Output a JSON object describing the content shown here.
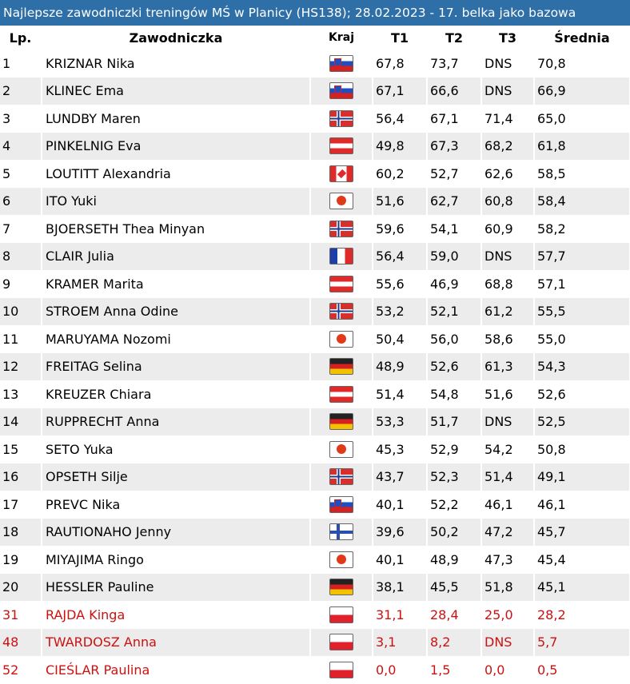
{
  "title": "Najlepsze zawodniczki treningów MŚ w Planicy (HS138); 28.02.2023 - 17. belka jako bazowa",
  "headers": {
    "lp": "Lp.",
    "name": "Zawodniczka",
    "country": "Kraj",
    "t1": "T1",
    "t2": "T2",
    "t3": "T3",
    "avg": "Średnia"
  },
  "highlight_color": "#cc1111",
  "rows": [
    {
      "lp": "1",
      "name": "KRIZNAR Nika",
      "flag": "SLO",
      "t1": "67,8",
      "t2": "73,7",
      "t3": "DNS",
      "avg": "70,8"
    },
    {
      "lp": "2",
      "name": "KLINEC Ema",
      "flag": "SLO",
      "t1": "67,1",
      "t2": "66,6",
      "t3": "DNS",
      "avg": "66,9"
    },
    {
      "lp": "3",
      "name": "LUNDBY Maren",
      "flag": "NOR",
      "t1": "56,4",
      "t2": "67,1",
      "t3": "71,4",
      "avg": "65,0"
    },
    {
      "lp": "4",
      "name": "PINKELNIG Eva",
      "flag": "AUT",
      "t1": "49,8",
      "t2": "67,3",
      "t3": "68,2",
      "avg": "61,8"
    },
    {
      "lp": "5",
      "name": "LOUTITT Alexandria",
      "flag": "CAN",
      "t1": "60,2",
      "t2": "52,7",
      "t3": "62,6",
      "avg": "58,5"
    },
    {
      "lp": "6",
      "name": "ITO Yuki",
      "flag": "JPN",
      "t1": "51,6",
      "t2": "62,7",
      "t3": "60,8",
      "avg": "58,4"
    },
    {
      "lp": "7",
      "name": "BJOERSETH Thea Minyan",
      "flag": "NOR",
      "t1": "59,6",
      "t2": "54,1",
      "t3": "60,9",
      "avg": "58,2"
    },
    {
      "lp": "8",
      "name": "CLAIR Julia",
      "flag": "FRA",
      "t1": "56,4",
      "t2": "59,0",
      "t3": "DNS",
      "avg": "57,7"
    },
    {
      "lp": "9",
      "name": "KRAMER Marita",
      "flag": "AUT",
      "t1": "55,6",
      "t2": "46,9",
      "t3": "68,8",
      "avg": "57,1"
    },
    {
      "lp": "10",
      "name": "STROEM Anna Odine",
      "flag": "NOR",
      "t1": "53,2",
      "t2": "52,1",
      "t3": "61,2",
      "avg": "55,5"
    },
    {
      "lp": "11",
      "name": "MARUYAMA Nozomi",
      "flag": "JPN",
      "t1": "50,4",
      "t2": "56,0",
      "t3": "58,6",
      "avg": "55,0"
    },
    {
      "lp": "12",
      "name": "FREITAG Selina",
      "flag": "GER",
      "t1": "48,9",
      "t2": "52,6",
      "t3": "61,3",
      "avg": "54,3"
    },
    {
      "lp": "13",
      "name": "KREUZER Chiara",
      "flag": "AUT",
      "t1": "51,4",
      "t2": "54,8",
      "t3": "51,6",
      "avg": "52,6"
    },
    {
      "lp": "14",
      "name": "RUPPRECHT Anna",
      "flag": "GER",
      "t1": "53,3",
      "t2": "51,7",
      "t3": "DNS",
      "avg": "52,5"
    },
    {
      "lp": "15",
      "name": "SETO Yuka",
      "flag": "JPN",
      "t1": "45,3",
      "t2": "52,9",
      "t3": "54,2",
      "avg": "50,8"
    },
    {
      "lp": "16",
      "name": "OPSETH Silje",
      "flag": "NOR",
      "t1": "43,7",
      "t2": "52,3",
      "t3": "51,4",
      "avg": "49,1"
    },
    {
      "lp": "17",
      "name": "PREVC Nika",
      "flag": "SLO",
      "t1": "40,1",
      "t2": "52,2",
      "t3": "46,1",
      "avg": "46,1"
    },
    {
      "lp": "18",
      "name": "RAUTIONAHO Jenny",
      "flag": "FIN",
      "t1": "39,6",
      "t2": "50,2",
      "t3": "47,2",
      "avg": "45,7"
    },
    {
      "lp": "19",
      "name": "MIYAJIMA Ringo",
      "flag": "JPN",
      "t1": "40,1",
      "t2": "48,9",
      "t3": "47,3",
      "avg": "45,4"
    },
    {
      "lp": "20",
      "name": "HESSLER Pauline",
      "flag": "GER",
      "t1": "38,1",
      "t2": "45,5",
      "t3": "51,8",
      "avg": "45,1"
    },
    {
      "lp": "31",
      "name": "RAJDA Kinga",
      "flag": "POL",
      "t1": "31,1",
      "t2": "28,4",
      "t3": "25,0",
      "avg": "28,2",
      "highlight": true
    },
    {
      "lp": "48",
      "name": "TWARDOSZ Anna",
      "flag": "POL",
      "t1": "3,1",
      "t2": "8,2",
      "t3": "DNS",
      "avg": "5,7",
      "highlight": true
    },
    {
      "lp": "52",
      "name": "CIEŚLAR Paulina",
      "flag": "POL",
      "t1": "0,0",
      "t2": "1,5",
      "t3": "0,0",
      "avg": "0,5",
      "highlight": true
    }
  ]
}
